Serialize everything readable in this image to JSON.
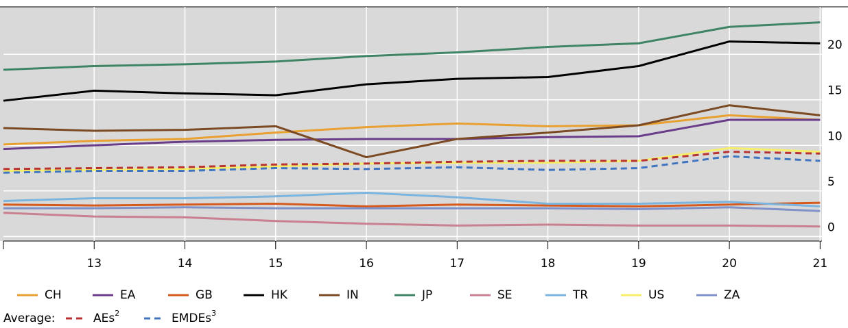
{
  "chart_data": {
    "type": "line",
    "x": [
      12,
      13,
      14,
      15,
      16,
      17,
      18,
      19,
      20,
      21
    ],
    "xlim": [
      12,
      21.02
    ],
    "xticks": [
      13,
      14,
      15,
      16,
      17,
      18,
      19,
      20,
      21
    ],
    "ylim": [
      -0.5,
      25.2
    ],
    "yticks": [
      0,
      5,
      10,
      15,
      20
    ],
    "grid": true,
    "legend_average_label": "Average:",
    "series": [
      {
        "name": "CH",
        "color": "#e8a030",
        "values": [
          10.1,
          10.5,
          10.7,
          11.4,
          12.0,
          12.4,
          12.1,
          12.2,
          13.3,
          12.8
        ]
      },
      {
        "name": "EA",
        "color": "#6a3d8a",
        "values": [
          9.6,
          10.0,
          10.4,
          10.6,
          10.7,
          10.7,
          10.9,
          11.0,
          12.8,
          12.8
        ]
      },
      {
        "name": "GB",
        "color": "#d65a1e",
        "values": [
          3.5,
          3.4,
          3.5,
          3.6,
          3.3,
          3.5,
          3.4,
          3.3,
          3.5,
          3.7
        ]
      },
      {
        "name": "HK",
        "color": "#000000",
        "values": [
          14.9,
          16.0,
          15.7,
          15.5,
          16.7,
          17.3,
          17.5,
          18.7,
          21.4,
          21.2
        ]
      },
      {
        "name": "IN",
        "color": "#7b4a22",
        "values": [
          11.9,
          11.6,
          11.7,
          12.1,
          8.7,
          10.7,
          11.4,
          12.2,
          14.4,
          13.3
        ]
      },
      {
        "name": "JP",
        "color": "#3f8464",
        "values": [
          18.3,
          18.7,
          18.9,
          19.2,
          19.8,
          20.2,
          20.8,
          21.2,
          23.0,
          23.5
        ]
      },
      {
        "name": "SE",
        "color": "#c98090",
        "values": [
          2.6,
          2.2,
          2.1,
          1.7,
          1.4,
          1.2,
          1.3,
          1.2,
          1.2,
          1.1
        ]
      },
      {
        "name": "TR",
        "color": "#7cb4e0",
        "values": [
          3.9,
          4.2,
          4.2,
          4.4,
          4.8,
          4.3,
          3.6,
          3.6,
          3.8,
          3.3
        ]
      },
      {
        "name": "US",
        "color": "#f7ee6a",
        "values": [
          7.2,
          7.3,
          7.4,
          7.7,
          8.0,
          8.1,
          8.1,
          8.3,
          9.7,
          9.3
        ]
      },
      {
        "name": "ZA",
        "color": "#8090c8",
        "values": [
          3.1,
          3.1,
          3.2,
          3.1,
          3.1,
          3.1,
          3.1,
          3.0,
          3.2,
          2.8
        ]
      },
      {
        "name": "AEs",
        "footnote": "2",
        "average": true,
        "dash": true,
        "color": "#b83232",
        "values": [
          7.4,
          7.5,
          7.6,
          7.9,
          8.0,
          8.2,
          8.3,
          8.3,
          9.3,
          9.1
        ]
      },
      {
        "name": "EMDEs",
        "footnote": "3",
        "average": true,
        "dash": true,
        "color": "#3f74c0",
        "values": [
          7.0,
          7.2,
          7.2,
          7.5,
          7.4,
          7.6,
          7.3,
          7.5,
          8.8,
          8.3
        ]
      }
    ]
  }
}
